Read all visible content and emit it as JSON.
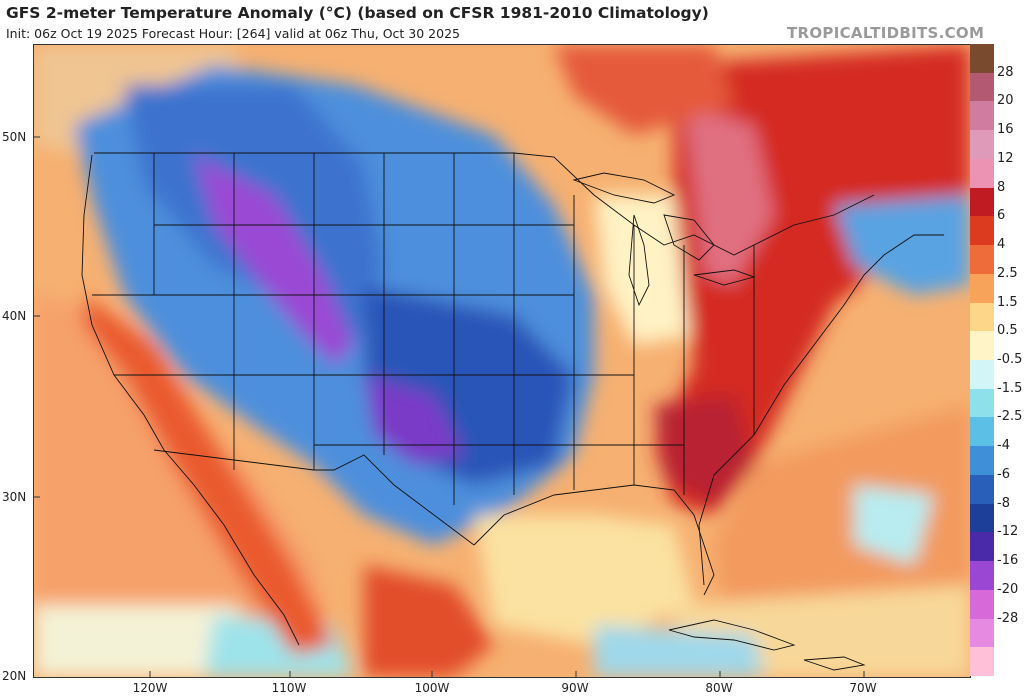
{
  "header": {
    "title": "GFS 2-meter Temperature Anomaly (°C) (based on CFSR 1981-2010 Climatology)",
    "subtitle": "Init: 06z Oct 19 2025   Forecast Hour: [264]   valid at 06z Thu, Oct 30 2025",
    "brand": "TROPICALTIDBITS.COM"
  },
  "map": {
    "lat_labels": [
      "50N",
      "40N",
      "30N",
      "20N"
    ],
    "lon_labels": [
      "120W",
      "110W",
      "100W",
      "90W",
      "80W",
      "70W"
    ],
    "extent": {
      "lon_min": -128,
      "lon_max": -62,
      "lat_min": 20,
      "lat_max": 55
    }
  },
  "legend": {
    "labels": [
      "28",
      "20",
      "16",
      "12",
      "8",
      "6",
      "4",
      "2.5",
      "1.5",
      "0.5",
      "-0.5",
      "-1.5",
      "-2.5",
      "-4",
      "-6",
      "-8",
      "-12",
      "-16",
      "-20",
      "-28"
    ],
    "colors": [
      "#7a4a2e",
      "#b35a72",
      "#cf7c9e",
      "#de9ab8",
      "#ec92b2",
      "#c01a22",
      "#dd3b1f",
      "#ee6c3a",
      "#f7a45a",
      "#fdd68a",
      "#fff4c6",
      "#d2f6f7",
      "#8ee0ea",
      "#5bbfe6",
      "#3e8fd8",
      "#2a5fb9",
      "#1e3f99",
      "#4a2aa8",
      "#9a48d4",
      "#d56ad8",
      "#e58ae0",
      "#ffc0d8"
    ]
  }
}
